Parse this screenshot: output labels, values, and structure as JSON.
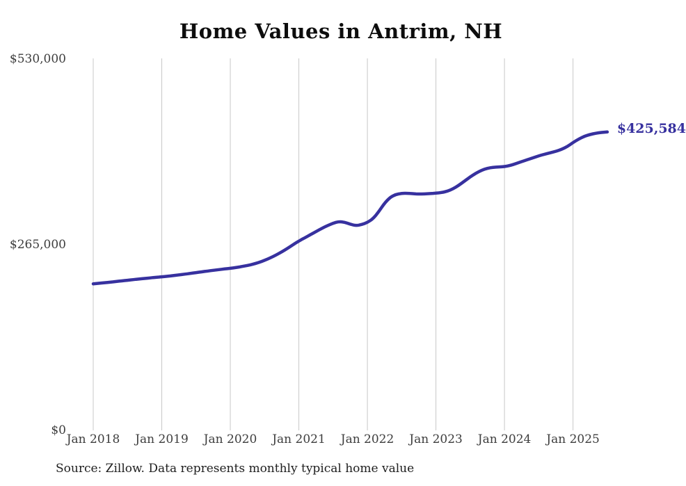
{
  "page": {
    "background": "#ffffff"
  },
  "chart_data": {
    "type": "line",
    "title": "Home Values in Antrim, NH",
    "source_note": "Source: Zillow. Data represents monthly typical home value",
    "end_label": "$425,584",
    "end_value": 425584,
    "line_color": "#37319f",
    "grid_color": "#c8c8c8",
    "ylim": [
      0,
      530000
    ],
    "grid": "vertical-only",
    "legend": "none",
    "y_ticks": [
      {
        "value": 0,
        "label": "$0"
      },
      {
        "value": 265000,
        "label": "$265,000"
      },
      {
        "value": 530000,
        "label": "$530,000"
      }
    ],
    "x_ticks": [
      "Jan 2018",
      "Jan 2019",
      "Jan 2020",
      "Jan 2021",
      "Jan 2022",
      "Jan 2023",
      "Jan 2024",
      "Jan 2025"
    ],
    "series": {
      "start_month": "Jan 2018",
      "end_month": "Jul 2025",
      "frequency": "monthly",
      "values": [
        209000,
        209800,
        210600,
        211400,
        212300,
        213200,
        214100,
        215000,
        215900,
        216700,
        217500,
        218300,
        219000,
        219800,
        220700,
        221700,
        222800,
        223900,
        225000,
        226100,
        227200,
        228300,
        229300,
        230200,
        231000,
        232200,
        233600,
        235200,
        237000,
        239500,
        242500,
        246000,
        250000,
        254500,
        259500,
        264800,
        270000,
        274500,
        279000,
        283500,
        288000,
        292000,
        295500,
        297800,
        297000,
        294000,
        292000,
        293500,
        296500,
        302000,
        312000,
        324000,
        332500,
        336500,
        338000,
        338200,
        337500,
        337000,
        337200,
        337800,
        338300,
        339200,
        341000,
        344500,
        349500,
        355500,
        361500,
        366800,
        371000,
        373800,
        375200,
        375600,
        376200,
        377800,
        380400,
        383300,
        386000,
        388700,
        391500,
        393800,
        395800,
        398000,
        400800,
        404800,
        410500,
        415500,
        419500,
        422000,
        423800,
        424900,
        425584
      ]
    }
  }
}
